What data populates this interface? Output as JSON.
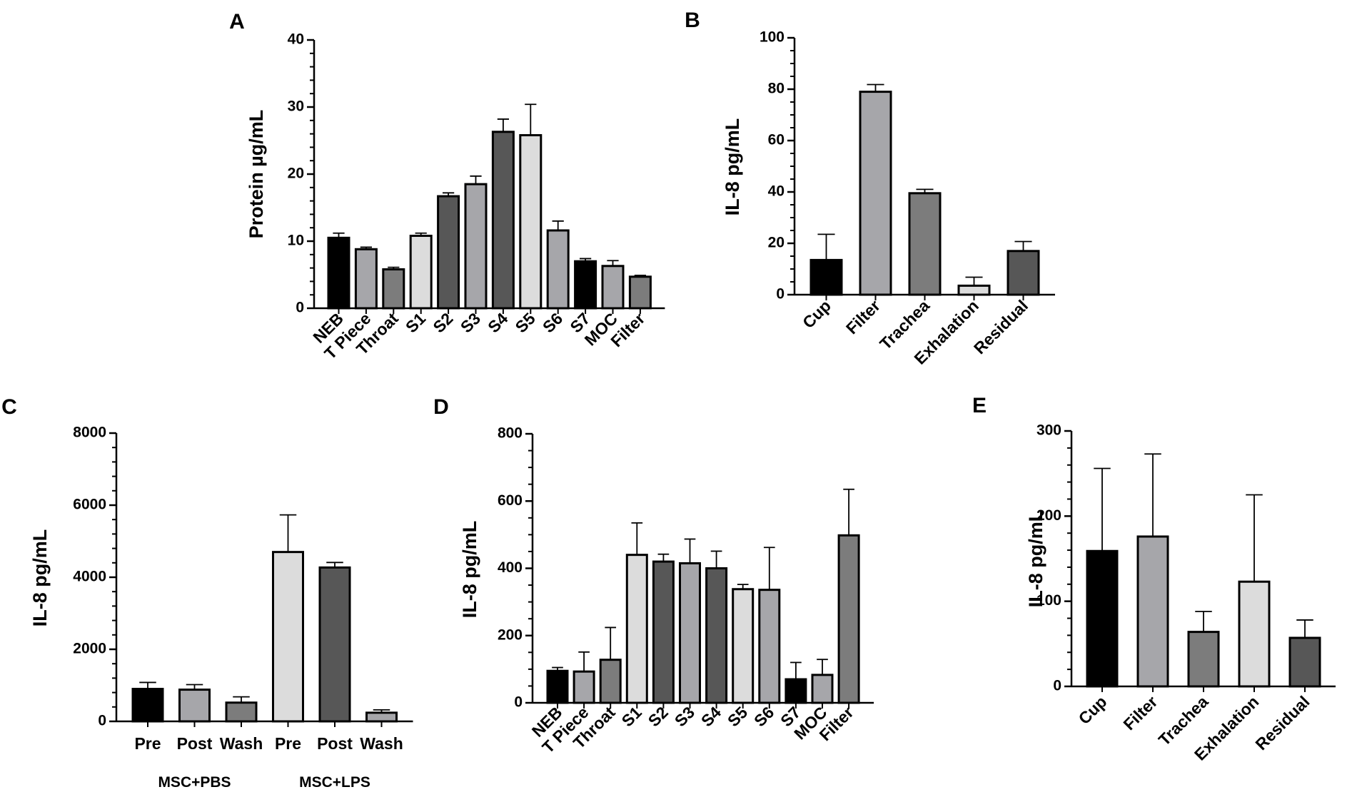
{
  "colors": {
    "black": "#000000",
    "gray_mid": "#a6a6aa",
    "gray_dark": "#7c7c7c",
    "gray_light": "#dcdcdc",
    "gray_darker": "#575757"
  },
  "chart_data": [
    {
      "id": "A",
      "panel_letter": "A",
      "type": "bar",
      "ylabel": "Protein µg/mL",
      "ylim": [
        0,
        40
      ],
      "yticks": [
        0,
        10,
        20,
        30,
        40
      ],
      "ytick_labels": [
        "0",
        "10",
        "20",
        "30",
        "40"
      ],
      "minor_ticks": 4,
      "categories": [
        "NEB",
        "T Piece",
        "Throat",
        "S1",
        "S2",
        "S3",
        "S4",
        "S5",
        "S6",
        "S7",
        "MOC",
        "Filter"
      ],
      "values": [
        10.5,
        8.8,
        5.8,
        10.8,
        16.7,
        18.5,
        26.3,
        25.8,
        11.6,
        7.0,
        6.3,
        4.7
      ],
      "errors": [
        0.7,
        0.3,
        0.3,
        0.4,
        0.5,
        1.2,
        1.9,
        4.6,
        1.4,
        0.4,
        0.8,
        0.2
      ],
      "bar_colors": [
        "black",
        "gray_mid",
        "gray_dark",
        "gray_light",
        "gray_darker",
        "gray_mid",
        "gray_darker",
        "gray_light",
        "gray_mid",
        "black",
        "gray_mid",
        "gray_dark"
      ]
    },
    {
      "id": "B",
      "panel_letter": "B",
      "type": "bar",
      "ylabel": "IL-8 pg/mL",
      "ylim": [
        0,
        100
      ],
      "yticks": [
        0,
        20,
        40,
        60,
        80,
        100
      ],
      "ytick_labels": [
        "0",
        "20",
        "40",
        "60",
        "80",
        "100"
      ],
      "minor_ticks": 3,
      "categories": [
        "Cup",
        "Filter",
        "Trachea",
        "Exhalation",
        "Residual"
      ],
      "values": [
        13.5,
        79,
        39.5,
        3.5,
        17
      ],
      "errors": [
        10,
        2.8,
        1.5,
        3.3,
        3.7
      ],
      "bar_colors": [
        "black",
        "gray_mid",
        "gray_dark",
        "gray_light",
        "gray_darker"
      ]
    },
    {
      "id": "C",
      "panel_letter": "C",
      "type": "bar",
      "ylabel": "IL-8 pg/mL",
      "ylim": [
        0,
        8000
      ],
      "yticks": [
        0,
        2000,
        4000,
        6000,
        8000
      ],
      "ytick_labels": [
        "0",
        "2000",
        "4000",
        "6000",
        "8000"
      ],
      "minor_ticks": 4,
      "categories": [
        "Pre",
        "Post",
        "Wash",
        "Pre",
        "Post",
        "Wash"
      ],
      "values": [
        900,
        880,
        520,
        4700,
        4270,
        240
      ],
      "errors": [
        180,
        140,
        160,
        1030,
        140,
        80
      ],
      "bar_colors": [
        "black",
        "gray_mid",
        "gray_dark",
        "gray_light",
        "gray_darker",
        "gray_mid"
      ],
      "groups": [
        {
          "label": "MSC+PBS",
          "first": 0,
          "last": 2
        },
        {
          "label": "MSC+LPS",
          "first": 3,
          "last": 5
        }
      ]
    },
    {
      "id": "D",
      "panel_letter": "D",
      "type": "bar",
      "ylabel": "IL-8 pg/mL",
      "ylim": [
        0,
        800
      ],
      "yticks": [
        0,
        200,
        400,
        600,
        800
      ],
      "ytick_labels": [
        "0",
        "200",
        "400",
        "600",
        "800"
      ],
      "minor_ticks": 3,
      "categories": [
        "NEB",
        "T Piece",
        "Throat",
        "S1",
        "S2",
        "S3",
        "S4",
        "S5",
        "S6",
        "S7",
        "MOC",
        "Filter"
      ],
      "values": [
        95,
        93,
        128,
        440,
        420,
        415,
        400,
        338,
        336,
        70,
        83,
        498
      ],
      "errors": [
        10,
        58,
        96,
        95,
        22,
        72,
        51,
        14,
        126,
        50,
        46,
        137
      ],
      "bar_colors": [
        "black",
        "gray_mid",
        "gray_dark",
        "gray_light",
        "gray_darker",
        "gray_mid",
        "gray_darker",
        "gray_light",
        "gray_mid",
        "black",
        "gray_mid",
        "gray_dark"
      ]
    },
    {
      "id": "E",
      "panel_letter": "E",
      "type": "bar",
      "ylabel": "IL-8 pg/mL",
      "ylim": [
        0,
        300
      ],
      "yticks": [
        0,
        100,
        200,
        300
      ],
      "ytick_labels": [
        "0",
        "100",
        "200",
        "300"
      ],
      "minor_ticks": 4,
      "categories": [
        "Cup",
        "Filter",
        "Trachea",
        "Exhalation",
        "Residual"
      ],
      "values": [
        159,
        176,
        64,
        123,
        57
      ],
      "errors": [
        97,
        97,
        24,
        102,
        21
      ],
      "bar_colors": [
        "black",
        "gray_mid",
        "gray_dark",
        "gray_light",
        "gray_darker"
      ]
    }
  ]
}
